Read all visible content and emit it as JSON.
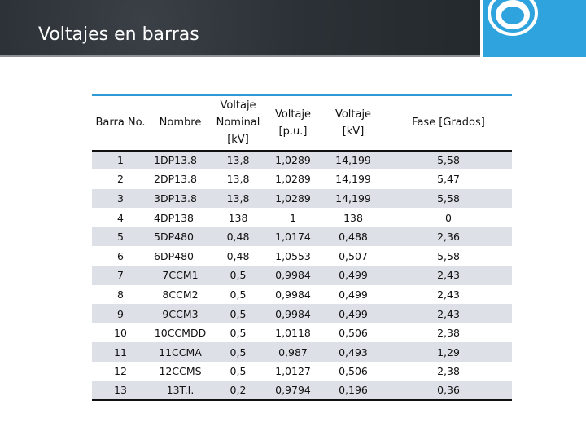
{
  "slide": {
    "title": "Voltajes en barras",
    "logo_icon": "concentric-circle-icon",
    "accent_color": "#2fa3de"
  },
  "table": {
    "headers": [
      "Barra No.",
      "Nombre",
      "Voltaje Nominal [kV]",
      "Voltaje [p.u.]",
      "Voltaje [kV]",
      "Fase [Grados]"
    ],
    "header_lines": [
      [
        "Barra No."
      ],
      [
        "Nombre"
      ],
      [
        "Voltaje",
        "Nominal",
        "[kV]"
      ],
      [
        "Voltaje",
        "[p.u.]"
      ],
      [
        "Voltaje",
        "[kV]"
      ],
      [
        "Fase [Grados]"
      ]
    ],
    "rows": [
      [
        "1",
        "1DP13.8",
        "13,8",
        "1,0289",
        "14,199",
        "5,58"
      ],
      [
        "2",
        "2DP13.8",
        "13,8",
        "1,0289",
        "14,199",
        "5,47"
      ],
      [
        "3",
        "3DP13.8",
        "13,8",
        "1,0289",
        "14,199",
        "5,58"
      ],
      [
        "4",
        "4DP138",
        "138",
        "1",
        "138",
        "0"
      ],
      [
        "5",
        "5DP480",
        "0,48",
        "1,0174",
        "0,488",
        "2,36"
      ],
      [
        "6",
        "6DP480",
        "0,48",
        "1,0553",
        "0,507",
        "5,58"
      ],
      [
        "7",
        "7CCM1",
        "0,5",
        "0,9984",
        "0,499",
        "2,43"
      ],
      [
        "8",
        "8CCM2",
        "0,5",
        "0,9984",
        "0,499",
        "2,43"
      ],
      [
        "9",
        "9CCM3",
        "0,5",
        "0,9984",
        "0,499",
        "2,43"
      ],
      [
        "10",
        "10CCMDD",
        "0,5",
        "1,0118",
        "0,506",
        "2,38"
      ],
      [
        "11",
        "11CCMA",
        "0,5",
        "0,987",
        "0,493",
        "1,29"
      ],
      [
        "12",
        "12CCMS",
        "0,5",
        "1,0127",
        "0,506",
        "2,38"
      ],
      [
        "13",
        "13T.I.",
        "0,2",
        "0,9794",
        "0,196",
        "0,36"
      ]
    ]
  }
}
